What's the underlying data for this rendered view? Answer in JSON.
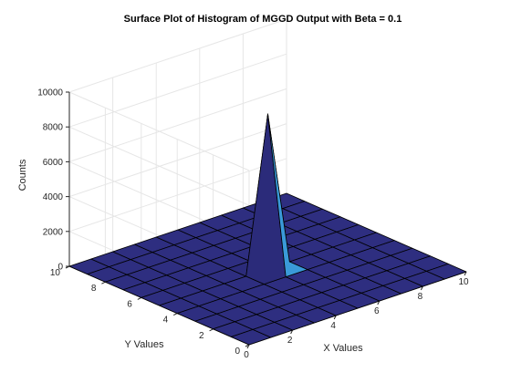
{
  "chart_data": {
    "type": "surface",
    "title": "Surface Plot of Histogram of MGGD Output with Beta = 0.1",
    "xlabel": "X Values",
    "ylabel": "Y Values",
    "zlabel": "Counts",
    "xlim": [
      0,
      10
    ],
    "ylim": [
      0,
      10
    ],
    "zlim": [
      0,
      10000
    ],
    "x_ticks": [
      "0",
      "2",
      "4",
      "6",
      "8",
      "10"
    ],
    "y_ticks": [
      "0",
      "2",
      "4",
      "6",
      "8",
      "10"
    ],
    "z_ticks": [
      "0",
      "2000",
      "4000",
      "6000",
      "8000",
      "10000"
    ],
    "grid": true,
    "x": [
      0,
      1,
      2,
      3,
      4,
      5,
      6,
      7,
      8,
      9,
      10
    ],
    "y": [
      0,
      1,
      2,
      3,
      4,
      5,
      6,
      7,
      8,
      9,
      10
    ],
    "peak": {
      "x": 5,
      "y": 5,
      "z": 8900
    },
    "surface_color": "#2e2e80",
    "highlight_color": "#3a9ad9",
    "edge_color": "#000000"
  }
}
